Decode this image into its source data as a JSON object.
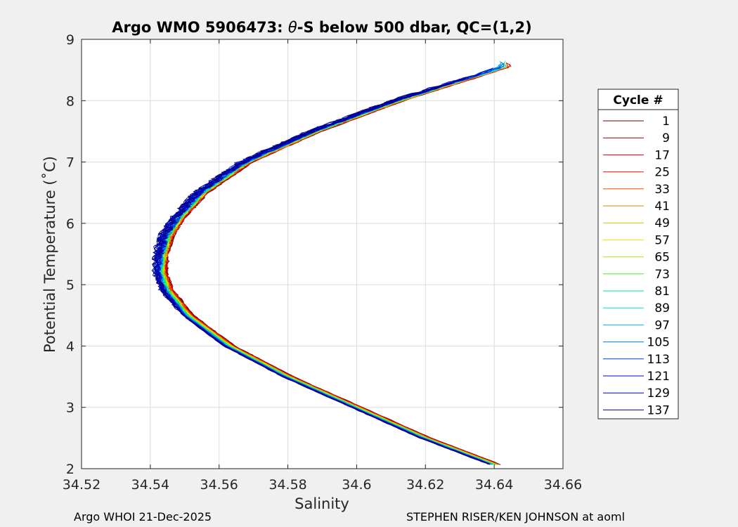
{
  "chart_data": {
    "type": "line",
    "title_prefix": "Argo WMO 5906473: ",
    "title_theta": "θ",
    "title_suffix": "-S below 500 dbar,  QC=(1,2)",
    "xlabel": "Salinity",
    "ylabel": "Potential Temperature (˚C)",
    "xlim": [
      34.52,
      34.66
    ],
    "ylim": [
      2,
      9
    ],
    "xticks": [
      "34.52",
      "34.54",
      "34.56",
      "34.58",
      "34.6",
      "34.62",
      "34.64",
      "34.66"
    ],
    "yticks": [
      "2",
      "3",
      "4",
      "5",
      "6",
      "7",
      "8",
      "9"
    ],
    "grid": true,
    "legend_title": "Cycle #",
    "legend_position": "outside-right",
    "series": [
      {
        "name": "1",
        "color": "#6b0000"
      },
      {
        "name": "9",
        "color": "#9a0000"
      },
      {
        "name": "17",
        "color": "#d40000"
      },
      {
        "name": "25",
        "color": "#f01a00"
      },
      {
        "name": "33",
        "color": "#ff4a00"
      },
      {
        "name": "41",
        "color": "#d08a00"
      },
      {
        "name": "49",
        "color": "#e0c000"
      },
      {
        "name": "57",
        "color": "#e8e800"
      },
      {
        "name": "65",
        "color": "#a8f000"
      },
      {
        "name": "73",
        "color": "#40f020"
      },
      {
        "name": "81",
        "color": "#00e0a0"
      },
      {
        "name": "89",
        "color": "#00e0e0"
      },
      {
        "name": "97",
        "color": "#00b0f0"
      },
      {
        "name": "105",
        "color": "#0080d0"
      },
      {
        "name": "113",
        "color": "#0040e0"
      },
      {
        "name": "121",
        "color": "#0000e0"
      },
      {
        "name": "129",
        "color": "#0000b0"
      },
      {
        "name": "137",
        "color": "#00008a"
      }
    ],
    "profile_shape": {
      "theta": [
        2.05,
        2.5,
        3.0,
        3.5,
        4.0,
        4.5,
        4.9,
        5.2,
        5.5,
        5.8,
        6.1,
        6.5,
        7.0,
        7.5,
        8.0,
        8.55
      ],
      "salinity": [
        34.641,
        34.62,
        34.6,
        34.58,
        34.563,
        34.551,
        34.545,
        34.543,
        34.5435,
        34.545,
        34.5485,
        34.555,
        34.568,
        34.588,
        34.612,
        34.643
      ]
    }
  },
  "footer": {
    "left": "Argo WHOI 21-Dec-2025",
    "right": "STEPHEN RISER/KEN JOHNSON at aoml"
  }
}
